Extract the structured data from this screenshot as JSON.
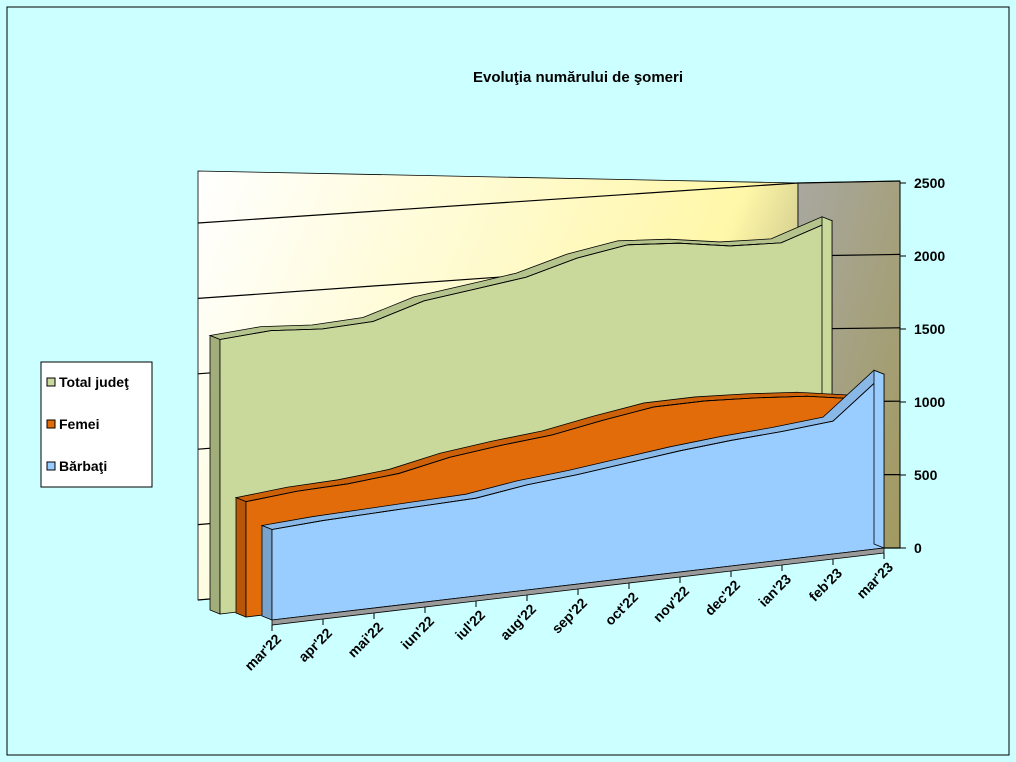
{
  "chart_data": {
    "type": "area3d",
    "title": "Evoluţia  numărului  de şomeri",
    "categories": [
      "mar'22",
      "apr'22",
      "mai'22",
      "iun'22",
      "iul'22",
      "aug'22",
      "sep'22",
      "oct'22",
      "nov'22",
      "dec'22",
      "ian'23",
      "feb'23",
      "mar'23"
    ],
    "series": [
      {
        "name": "Total judeţ",
        "color": "#c9d99b",
        "values": [
          1880,
          1900,
          1870,
          1880,
          1980,
          2020,
          2060,
          2150,
          2200,
          2170,
          2110,
          2090,
          2200
        ]
      },
      {
        "name": "Femei",
        "color": "#e36c0a",
        "values": [
          790,
          820,
          830,
          860,
          930,
          970,
          1000,
          1060,
          1110,
          1110,
          1090,
          1060,
          1000
        ]
      },
      {
        "name": "Bărbaţi",
        "color": "#99ccff",
        "values": [
          620,
          640,
          650,
          660,
          670,
          720,
          750,
          790,
          830,
          860,
          880,
          910,
          1190
        ]
      }
    ],
    "ylim": [
      0,
      2500
    ],
    "yticks": [
      0,
      500,
      1000,
      1500,
      2000,
      2500
    ],
    "grid": true,
    "legend": "left"
  }
}
